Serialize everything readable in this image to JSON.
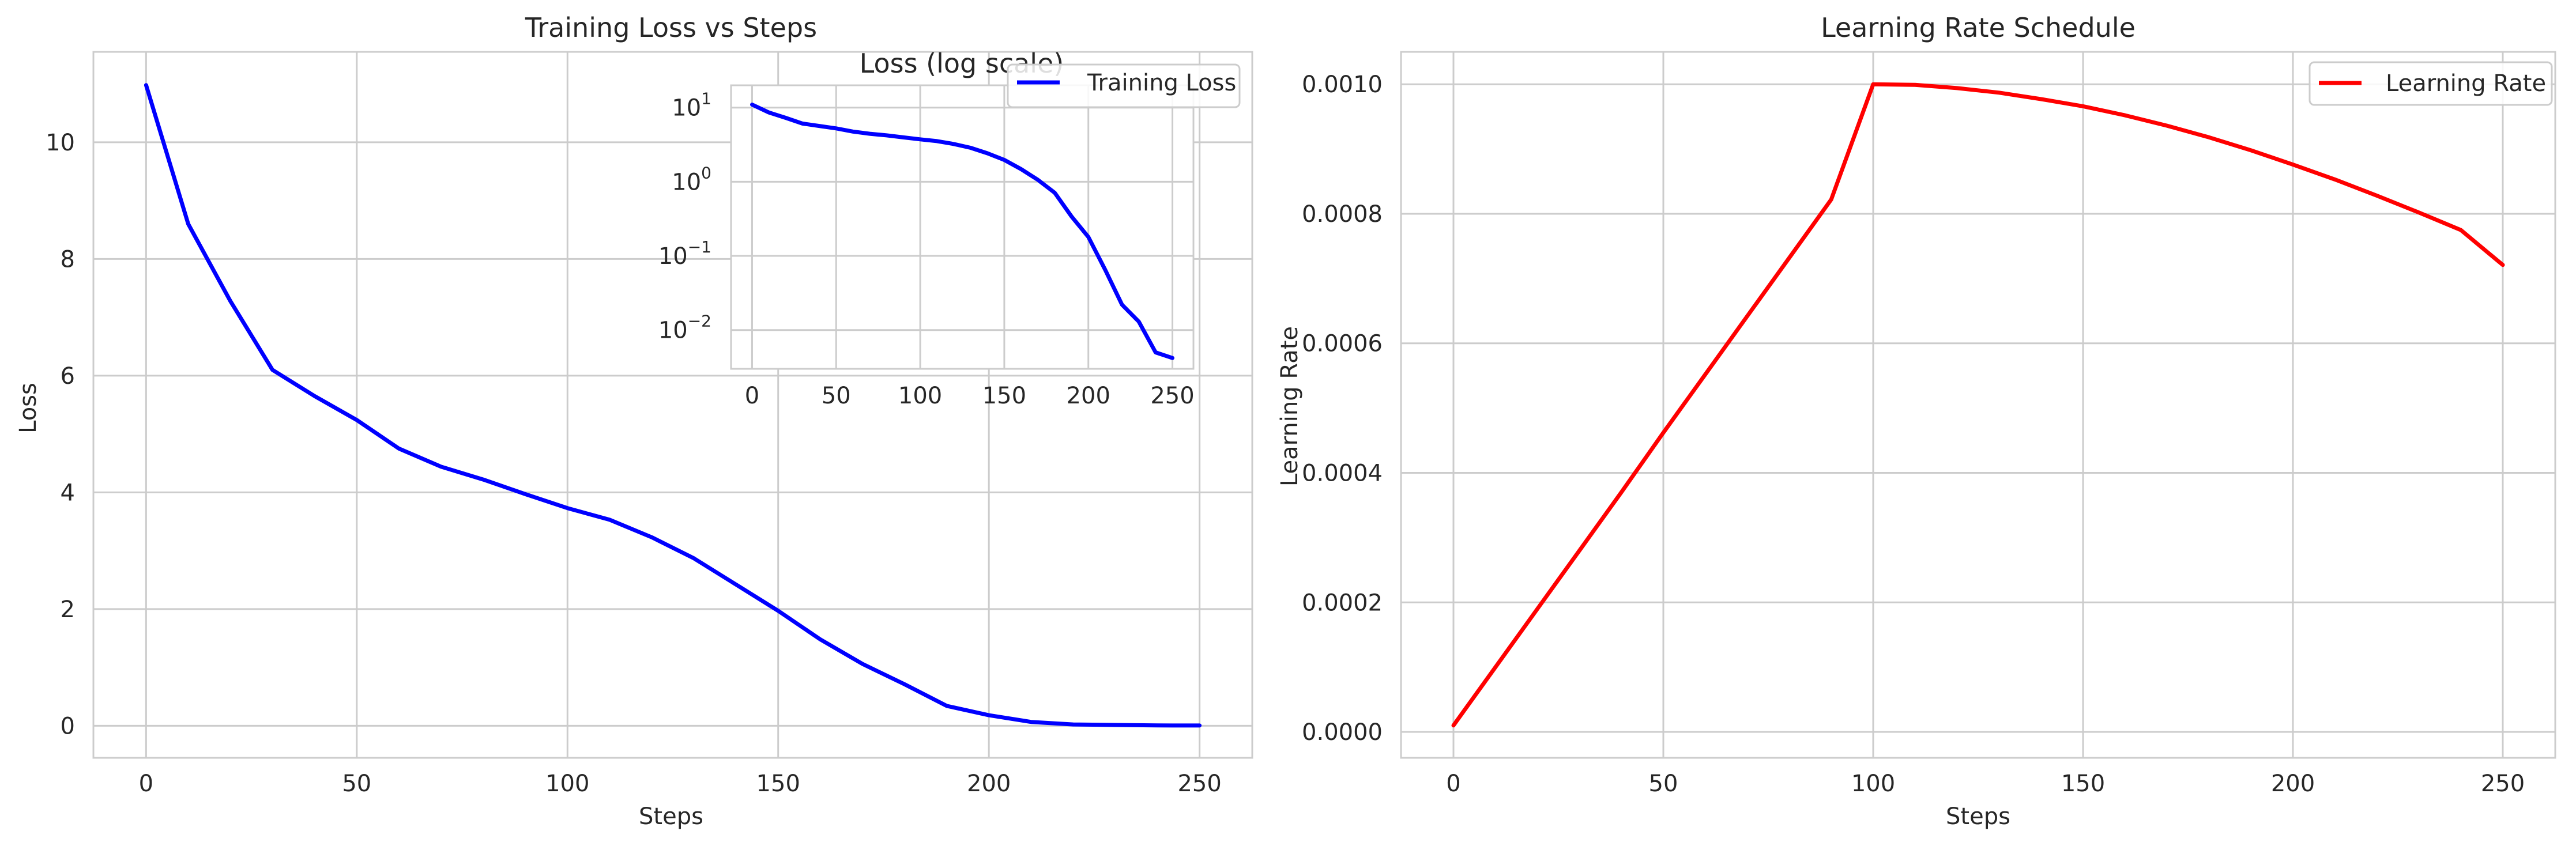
{
  "chart_data": [
    {
      "type": "line",
      "title": "Training Loss vs Steps",
      "xlabel": "Steps",
      "ylabel": "Loss",
      "xlim": [
        -12.5,
        262.5
      ],
      "ylim": [
        -0.55,
        11.55
      ],
      "xticks": [
        0,
        50,
        100,
        150,
        200,
        250
      ],
      "yticks": [
        0,
        2,
        4,
        6,
        8,
        10
      ],
      "grid": true,
      "legend": "top-right",
      "series": [
        {
          "name": "Training Loss",
          "color": "#0000ff",
          "x": [
            0,
            10,
            20,
            30,
            40,
            50,
            60,
            70,
            80,
            90,
            100,
            110,
            120,
            130,
            140,
            150,
            160,
            170,
            180,
            190,
            200,
            210,
            220,
            230,
            240,
            250
          ],
          "y": [
            10.98,
            8.6,
            7.28,
            6.1,
            5.65,
            5.24,
            4.75,
            4.44,
            4.22,
            3.97,
            3.73,
            3.53,
            3.23,
            2.87,
            2.42,
            1.97,
            1.48,
            1.06,
            0.71,
            0.34,
            0.18,
            0.065,
            0.022,
            0.013,
            0.005,
            0.0042
          ]
        }
      ]
    },
    {
      "type": "line",
      "title": "Loss (log scale)",
      "xlabel": "",
      "ylabel": "",
      "yscale": "log",
      "xlim": [
        -12.5,
        262.5
      ],
      "ylim": [
        0.003,
        20
      ],
      "xticks": [
        0,
        50,
        100,
        150,
        200,
        250
      ],
      "yticks": [
        {
          "base": "10",
          "exp": "1",
          "value": 10
        },
        {
          "base": "10",
          "exp": "0",
          "value": 1
        },
        {
          "base": "10",
          "exp": "−1",
          "value": 0.1
        },
        {
          "base": "10",
          "exp": "−2",
          "value": 0.01
        }
      ],
      "grid": true,
      "series": [
        {
          "name": "",
          "color": "#0000ff",
          "x": [
            0,
            10,
            20,
            30,
            40,
            50,
            60,
            70,
            80,
            90,
            100,
            110,
            120,
            130,
            140,
            150,
            160,
            170,
            180,
            190,
            200,
            210,
            220,
            230,
            240,
            250
          ],
          "y": [
            10.98,
            8.6,
            7.28,
            6.1,
            5.65,
            5.24,
            4.75,
            4.44,
            4.22,
            3.97,
            3.73,
            3.53,
            3.23,
            2.87,
            2.42,
            1.97,
            1.48,
            1.06,
            0.71,
            0.34,
            0.18,
            0.065,
            0.022,
            0.013,
            0.005,
            0.0042
          ]
        }
      ]
    },
    {
      "type": "line",
      "title": "Learning Rate Schedule",
      "xlabel": "Steps",
      "ylabel": "Learning Rate",
      "xlim": [
        -12.5,
        262.5
      ],
      "ylim": [
        -4e-05,
        0.00105
      ],
      "xticks": [
        0,
        50,
        100,
        150,
        200,
        250
      ],
      "yticks": [
        0,
        0.0002,
        0.0004,
        0.0006,
        0.0008,
        0.001
      ],
      "ytick_labels": [
        "0.0000",
        "0.0002",
        "0.0004",
        "0.0006",
        "0.0008",
        "0.0010"
      ],
      "grid": true,
      "legend": "top-right",
      "series": [
        {
          "name": "Learning Rate",
          "color": "#ff0000",
          "x": [
            0,
            10,
            20,
            30,
            40,
            50,
            60,
            70,
            80,
            90,
            100,
            110,
            120,
            130,
            140,
            150,
            160,
            170,
            180,
            190,
            200,
            210,
            220,
            230,
            240,
            250
          ],
          "y": [
            1e-05,
            0.0001,
            0.00019,
            0.00028,
            0.00037,
            0.000462,
            0.000552,
            0.000642,
            0.000732,
            0.000822,
            0.001,
            0.000999,
            0.000994,
            0.000987,
            0.000977,
            0.000966,
            0.000952,
            0.000936,
            0.000918,
            0.000898,
            0.000876,
            0.000853,
            0.000828,
            0.000802,
            0.000775,
            0.000721
          ]
        }
      ]
    }
  ]
}
